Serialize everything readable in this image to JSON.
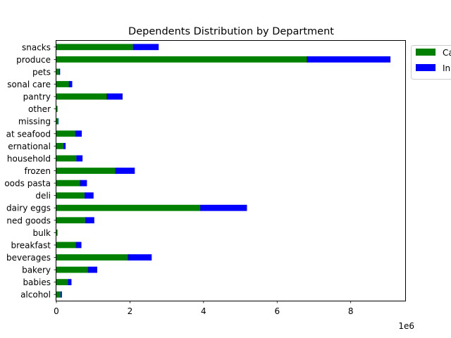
{
  "chart_data": {
    "type": "bar",
    "orientation": "horizontal",
    "stacked": true,
    "title": "Dependents Distribution by Department",
    "xlabel": "",
    "ylabel": "",
    "x_offset_label": "1e6",
    "xlim": [
      0,
      9.5
    ],
    "x_ticks": [
      0,
      2,
      4,
      6,
      8
    ],
    "grid": false,
    "legend_position": "upper-right-outside",
    "categories": [
      "alcohol",
      "babies",
      "bakery",
      "beverages",
      "breakfast",
      "bulk",
      "canned goods",
      "dairy eggs",
      "deli",
      "dry goods pasta",
      "frozen",
      "household",
      "international",
      "meat seafood",
      "missing",
      "other",
      "pantry",
      "personal care",
      "pets",
      "produce",
      "snacks"
    ],
    "category_labels_visible": [
      "alcohol",
      "babies",
      "bakery",
      "beverages",
      "breakfast",
      "bulk",
      "ned goods",
      "dairy eggs",
      "deli",
      "oods pasta",
      "frozen",
      "household",
      "ernational",
      "at seafood",
      "missing",
      "other",
      "pantry",
      "sonal care",
      "pets",
      "produce",
      "snacks"
    ],
    "series": [
      {
        "name": "Ca",
        "color": "#008000",
        "values": [
          0.11,
          0.31,
          0.85,
          1.93,
          0.52,
          0.02,
          0.78,
          3.9,
          0.76,
          0.63,
          1.6,
          0.54,
          0.19,
          0.51,
          0.05,
          0.02,
          1.36,
          0.33,
          0.07,
          6.8,
          2.08
        ]
      },
      {
        "name": "In",
        "color": "#0000ff",
        "values": [
          0.04,
          0.1,
          0.26,
          0.66,
          0.16,
          0.01,
          0.25,
          1.28,
          0.25,
          0.2,
          0.53,
          0.17,
          0.06,
          0.18,
          0.01,
          0.01,
          0.44,
          0.1,
          0.03,
          2.28,
          0.7
        ]
      }
    ]
  }
}
